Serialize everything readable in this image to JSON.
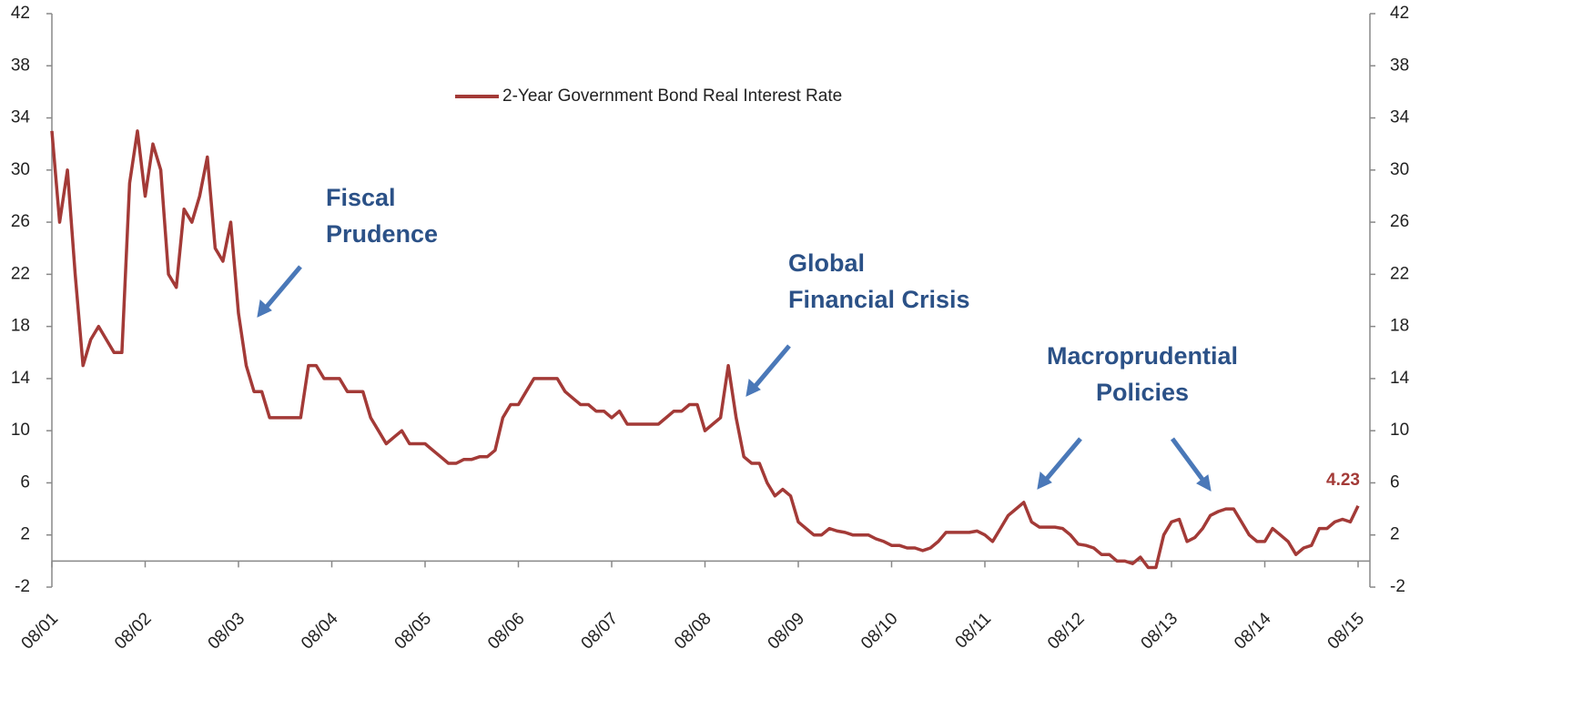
{
  "chart_data": {
    "type": "line",
    "categories": [
      "08/01",
      null,
      null,
      null,
      null,
      null,
      null,
      null,
      null,
      null,
      null,
      null,
      "08/02",
      null,
      null,
      null,
      null,
      null,
      null,
      null,
      null,
      null,
      null,
      null,
      "08/03",
      null,
      null,
      null,
      null,
      null,
      null,
      null,
      null,
      null,
      null,
      null,
      "08/04",
      null,
      null,
      null,
      null,
      null,
      null,
      null,
      null,
      null,
      null,
      null,
      "08/05",
      null,
      null,
      null,
      null,
      null,
      null,
      null,
      null,
      null,
      null,
      null,
      "08/06",
      null,
      null,
      null,
      null,
      null,
      null,
      null,
      null,
      null,
      null,
      null,
      "08/07",
      null,
      null,
      null,
      null,
      null,
      null,
      null,
      null,
      null,
      null,
      null,
      "08/08",
      null,
      null,
      null,
      null,
      null,
      null,
      null,
      null,
      null,
      null,
      null,
      "08/09",
      null,
      null,
      null,
      null,
      null,
      null,
      null,
      null,
      null,
      null,
      null,
      "08/10",
      null,
      null,
      null,
      null,
      null,
      null,
      null,
      null,
      null,
      null,
      null,
      "08/11",
      null,
      null,
      null,
      null,
      null,
      null,
      null,
      null,
      null,
      null,
      null,
      "08/12",
      null,
      null,
      null,
      null,
      null,
      null,
      null,
      null,
      null,
      null,
      null,
      "08/13",
      null,
      null,
      null,
      null,
      null,
      null,
      null,
      null,
      null,
      null,
      null,
      "08/14",
      null,
      null,
      null,
      null,
      null,
      null,
      null,
      null,
      null,
      null,
      null,
      "08/15"
    ],
    "series": [
      {
        "name": "2-Year Government Bond Real Interest Rate",
        "color": "#a33a37",
        "values": [
          33,
          26,
          30,
          22,
          15,
          17,
          18,
          17,
          16,
          16,
          29,
          33,
          28,
          32,
          30,
          22,
          21,
          27,
          26,
          28,
          31,
          24,
          23,
          26,
          19,
          15,
          13,
          13,
          11,
          11,
          11,
          11,
          11,
          15,
          15,
          14,
          14,
          14,
          13,
          13,
          13,
          11,
          10,
          9,
          9.5,
          10,
          9,
          9,
          9,
          8.5,
          8,
          7.5,
          7.5,
          7.8,
          7.8,
          8,
          8,
          8.5,
          11,
          12,
          12,
          13,
          14,
          14,
          14,
          14,
          13,
          12.5,
          12,
          12,
          11.5,
          11.5,
          11,
          11.5,
          10.5,
          10.5,
          10.5,
          10.5,
          10.5,
          11,
          11.5,
          11.5,
          12,
          12,
          10,
          10.5,
          11,
          15,
          11,
          8,
          7.5,
          7.5,
          6,
          5,
          5.5,
          5,
          3,
          2.5,
          2,
          2,
          2.5,
          2.3,
          2.2,
          2,
          2,
          2,
          1.7,
          1.5,
          1.2,
          1.2,
          1,
          1,
          0.8,
          1,
          1.5,
          2.2,
          2.2,
          2.2,
          2.2,
          2.3,
          2,
          1.5,
          2.5,
          3.5,
          4,
          4.5,
          3,
          2.6,
          2.6,
          2.6,
          2.5,
          2,
          1.3,
          1.2,
          1,
          0.5,
          0.5,
          0,
          0,
          -0.2,
          0.3,
          -0.5,
          -0.5,
          2,
          3,
          3.2,
          1.5,
          1.8,
          2.5,
          3.5,
          3.8,
          4,
          4,
          3,
          2,
          1.5,
          1.5,
          2.5,
          2,
          1.5,
          0.5,
          1,
          1.2,
          2.5,
          2.5,
          3,
          3.2,
          3,
          4.23
        ]
      }
    ],
    "ylim": [
      -2,
      42
    ],
    "yticks": [
      -2,
      2,
      6,
      10,
      14,
      18,
      22,
      26,
      30,
      34,
      38,
      42
    ],
    "y2lim": [
      -2,
      42
    ],
    "y2ticks": [
      -2,
      2,
      6,
      10,
      14,
      18,
      22,
      26,
      30,
      34,
      38,
      42
    ],
    "legend": "top center",
    "grid": false,
    "annotations": [
      [
        "Fiscal",
        "Prudence"
      ],
      [
        "Global",
        "Financial Crisis"
      ],
      [
        "Macroprudential",
        "Policies"
      ]
    ]
  }
}
